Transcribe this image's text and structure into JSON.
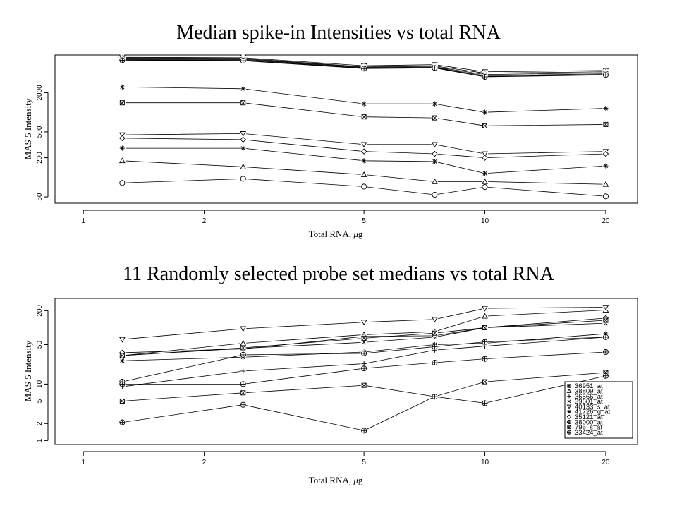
{
  "chart_data": [
    {
      "type": "line",
      "title": "Median spike-in Intensities vs total RNA",
      "xlabel_main": "Total RNA, ",
      "xlabel_mu": "μ",
      "xlabel_unit": "g",
      "ylabel": "MAS 5 Intensity",
      "x_scale": "log",
      "y_scale": "log",
      "xlim": [
        0.85,
        24
      ],
      "ylim": [
        40,
        7600
      ],
      "xticks": [
        1,
        2,
        5,
        10,
        20
      ],
      "xtick_labels": [
        "1",
        "2",
        "5",
        "10",
        "20"
      ],
      "yticks": [
        50,
        200,
        500,
        2000
      ],
      "ytick_labels": [
        "50",
        "200",
        "500",
        "2000"
      ],
      "grid": false,
      "x": [
        1.25,
        2.5,
        5,
        7.5,
        10,
        20
      ],
      "series": [
        {
          "marker": "triangle-down",
          "values": [
            7000,
            6900,
            5200,
            5400,
            4200,
            4400
          ]
        },
        {
          "marker": "triangle-up",
          "values": [
            6850,
            6750,
            5000,
            5150,
            4000,
            4200
          ]
        },
        {
          "marker": "x",
          "values": [
            6700,
            6600,
            4900,
            5000,
            3800,
            4050
          ]
        },
        {
          "marker": "boxed-x",
          "values": [
            6550,
            6450,
            4800,
            4900,
            3650,
            3900
          ]
        },
        {
          "marker": "diamond",
          "values": [
            6400,
            6300,
            4750,
            4850,
            3550,
            3800
          ]
        },
        {
          "marker": "circle-plus",
          "values": [
            6300,
            6200,
            4700,
            4800,
            3500,
            3750
          ]
        },
        {
          "marker": "asterisk",
          "values": [
            2450,
            2300,
            1350,
            1350,
            1000,
            1150
          ]
        },
        {
          "marker": "boxed-x",
          "values": [
            1400,
            1400,
            850,
            820,
            620,
            650
          ]
        },
        {
          "marker": "triangle-down",
          "values": [
            450,
            470,
            320,
            320,
            230,
            250
          ]
        },
        {
          "marker": "diamond",
          "values": [
            400,
            380,
            250,
            230,
            200,
            230
          ]
        },
        {
          "marker": "asterisk",
          "values": [
            280,
            280,
            180,
            175,
            115,
            150
          ]
        },
        {
          "marker": "triangle-up",
          "values": [
            180,
            145,
            110,
            86,
            86,
            78
          ]
        },
        {
          "marker": "circle",
          "values": [
            82,
            95,
            72,
            54,
            71,
            51
          ]
        }
      ]
    },
    {
      "type": "line",
      "title": "11 Randomly selected probe set medians vs total RNA",
      "xlabel_main": "Total RNA, ",
      "xlabel_mu": "μ",
      "xlabel_unit": "g",
      "ylabel": "MAS 5 Intensity",
      "x_scale": "log",
      "y_scale": "log",
      "xlim": [
        0.85,
        24
      ],
      "ylim": [
        0.85,
        330
      ],
      "xticks": [
        1,
        2,
        5,
        10,
        20
      ],
      "xtick_labels": [
        "1",
        "2",
        "5",
        "10",
        "20"
      ],
      "yticks": [
        1,
        2,
        5,
        10,
        50,
        200
      ],
      "ytick_labels": [
        "1",
        "2",
        "5",
        "10",
        "50",
        "200"
      ],
      "grid": false,
      "x": [
        1.25,
        2.5,
        5,
        7.5,
        10,
        20
      ],
      "legend_position": "bottom-right",
      "series": [
        {
          "name": "36951_at",
          "marker": "boxed-x",
          "values": [
            5,
            7,
            9.5,
            6,
            11,
            16
          ]
        },
        {
          "name": "38809_at",
          "marker": "triangle-up",
          "values": [
            32,
            53,
            75,
            85,
            160,
            205
          ]
        },
        {
          "name": "36566_at",
          "marker": "plus",
          "values": [
            9,
            17,
            23,
            40,
            47,
            68
          ]
        },
        {
          "name": "39601_at",
          "marker": "x",
          "values": [
            32,
            43,
            55,
            68,
            100,
            120
          ]
        },
        {
          "name": "40133_s_at",
          "marker": "triangle-down",
          "values": [
            62,
            96,
            125,
            140,
            220,
            230
          ]
        },
        {
          "name": "41726_g_at",
          "marker": "asterisk",
          "values": [
            26,
            30,
            37,
            50,
            53,
            78
          ]
        },
        {
          "name": "35121_at",
          "marker": "diamond",
          "values": [
            36,
            42,
            70,
            72,
            100,
            148
          ]
        },
        {
          "name": "38000_at",
          "marker": "circle-plus",
          "values": [
            11,
            33,
            35,
            46,
            56,
            68
          ]
        },
        {
          "name": "795_s_at",
          "marker": "boxed-x",
          "values": [
            32,
            44,
            65,
            80,
            100,
            135
          ]
        },
        {
          "name": "33424_at",
          "marker": "circle-plus",
          "values": [
            10,
            10,
            19,
            24,
            28,
            37
          ]
        },
        {
          "name": "",
          "marker": "circle-plus",
          "values": [
            2.1,
            4.3,
            1.5,
            6,
            4.6,
            14
          ]
        }
      ]
    }
  ]
}
